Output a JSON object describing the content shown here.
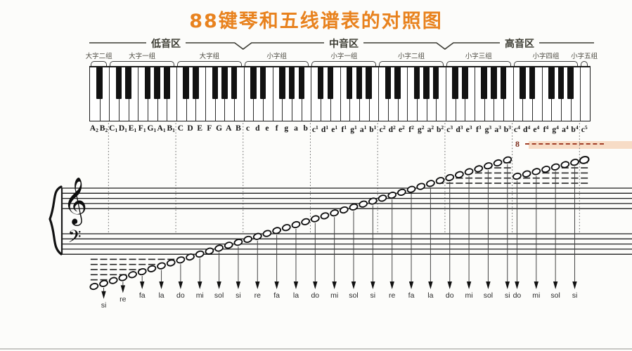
{
  "title": {
    "text": "88键琴和五线谱表的对照图",
    "color": "#e8821e"
  },
  "regions": [
    {
      "label": "低音区"
    },
    {
      "label": "中音区"
    },
    {
      "label": "高音区"
    }
  ],
  "octave_groups": [
    {
      "label": "大字二组",
      "notes": [
        "A2",
        "B2"
      ]
    },
    {
      "label": "大字一组",
      "notes": [
        "C1",
        "D1",
        "E1",
        "F1",
        "G1",
        "A1",
        "B1"
      ]
    },
    {
      "label": "大字组",
      "notes": [
        "C",
        "D",
        "E",
        "F",
        "G",
        "A",
        "B"
      ]
    },
    {
      "label": "小字组",
      "notes": [
        "c",
        "d",
        "e",
        "f",
        "g",
        "a",
        "b"
      ]
    },
    {
      "label": "小字一组",
      "notes": [
        "c1",
        "d1",
        "e1",
        "f1",
        "g1",
        "a1",
        "b1"
      ]
    },
    {
      "label": "小字二组",
      "notes": [
        "c2",
        "d2",
        "e2",
        "f2",
        "g2",
        "a2",
        "b2"
      ]
    },
    {
      "label": "小字三组",
      "notes": [
        "c3",
        "d3",
        "e3",
        "f3",
        "g3",
        "a3",
        "b3"
      ]
    },
    {
      "label": "小字四组",
      "notes": [
        "c4",
        "d4",
        "e4",
        "f4",
        "g4",
        "a4",
        "b4"
      ]
    },
    {
      "label": "小字五组",
      "notes": [
        "c5"
      ]
    }
  ],
  "solfege": [
    {
      "key": 1,
      "label": "si"
    },
    {
      "key": 3,
      "label": "re"
    },
    {
      "key": 5,
      "label": "fa"
    },
    {
      "key": 7,
      "label": "la"
    },
    {
      "key": 9,
      "label": "do"
    },
    {
      "key": 11,
      "label": "mi"
    },
    {
      "key": 13,
      "label": "sol"
    },
    {
      "key": 15,
      "label": "si"
    },
    {
      "key": 17,
      "label": "re"
    },
    {
      "key": 19,
      "label": "fa"
    },
    {
      "key": 21,
      "label": "la"
    },
    {
      "key": 23,
      "label": "do"
    },
    {
      "key": 25,
      "label": "mi"
    },
    {
      "key": 27,
      "label": "sol"
    },
    {
      "key": 29,
      "label": "si"
    },
    {
      "key": 31,
      "label": "re"
    },
    {
      "key": 33,
      "label": "fa"
    },
    {
      "key": 35,
      "label": "la"
    },
    {
      "key": 37,
      "label": "do"
    },
    {
      "key": 39,
      "label": "mi"
    },
    {
      "key": 41,
      "label": "sol"
    },
    {
      "key": 43,
      "label": "si"
    },
    {
      "key": 44,
      "label": "do"
    },
    {
      "key": 46,
      "label": "mi"
    },
    {
      "key": 48,
      "label": "sol"
    },
    {
      "key": 50,
      "label": "si"
    }
  ],
  "staff": {
    "treble_clef": "𝄞",
    "bass_clef": "𝄢"
  },
  "ottava": {
    "symbol": "8"
  }
}
